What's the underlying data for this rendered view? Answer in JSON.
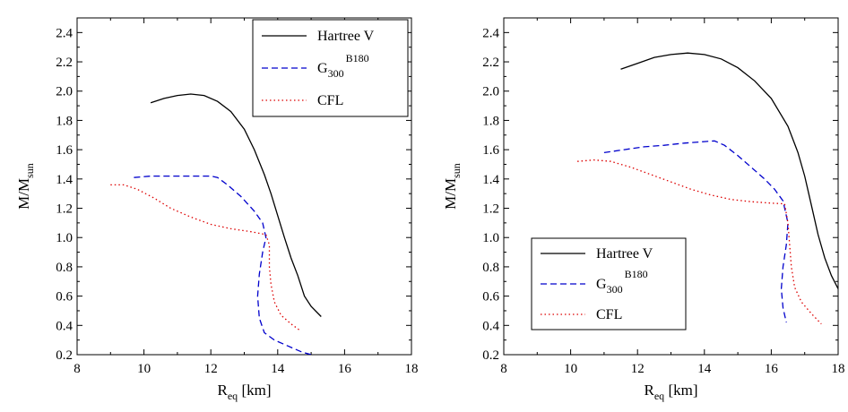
{
  "chart_data": [
    {
      "type": "line",
      "xlabel": "R_eq [km]",
      "ylabel": "M/M_sun",
      "xlim": [
        8,
        18
      ],
      "ylim": [
        0.2,
        2.5
      ],
      "xticks": [
        8,
        10,
        12,
        14,
        16,
        18
      ],
      "yticks": [
        0.2,
        0.4,
        0.6,
        0.8,
        1.0,
        1.2,
        1.4,
        1.6,
        1.8,
        2.0,
        2.2,
        2.4
      ],
      "grid": false,
      "legend_position": "top-right",
      "series": [
        {
          "name": "Hartree V",
          "color": "#000000",
          "dash": "solid",
          "x": [
            10.2,
            10.6,
            11.0,
            11.4,
            11.8,
            12.2,
            12.6,
            13.0,
            13.3,
            13.6,
            13.8,
            14.0,
            14.2,
            14.4,
            14.6,
            14.8,
            15.0,
            15.3
          ],
          "y": [
            1.92,
            1.95,
            1.97,
            1.98,
            1.97,
            1.93,
            1.86,
            1.74,
            1.6,
            1.43,
            1.3,
            1.15,
            1.0,
            0.86,
            0.74,
            0.6,
            0.53,
            0.46
          ]
        },
        {
          "name": "G_300^B180",
          "color": "#0000cc",
          "dash": "dashed",
          "x": [
            9.7,
            10.2,
            10.8,
            11.4,
            12.0,
            12.2,
            12.5,
            12.9,
            13.3,
            13.55,
            13.65,
            13.55,
            13.45,
            13.4,
            13.45,
            13.6,
            13.9,
            14.3,
            14.7,
            15.0
          ],
          "y": [
            1.41,
            1.42,
            1.42,
            1.42,
            1.42,
            1.41,
            1.36,
            1.28,
            1.18,
            1.1,
            1.0,
            0.9,
            0.75,
            0.6,
            0.45,
            0.35,
            0.3,
            0.26,
            0.22,
            0.2
          ]
        },
        {
          "name": "CFL",
          "color": "#dd0000",
          "dash": "dotted",
          "x": [
            9.0,
            9.4,
            9.8,
            10.3,
            10.8,
            11.4,
            12.0,
            12.6,
            13.2,
            13.65,
            13.75,
            13.75,
            13.8,
            13.9,
            14.1,
            14.4,
            14.7
          ],
          "y": [
            1.36,
            1.36,
            1.33,
            1.27,
            1.2,
            1.14,
            1.09,
            1.06,
            1.04,
            1.02,
            0.95,
            0.8,
            0.68,
            0.56,
            0.47,
            0.41,
            0.36
          ]
        }
      ]
    },
    {
      "type": "line",
      "xlabel": "R_eq [km]",
      "ylabel": "M/M_sun",
      "xlim": [
        8,
        18
      ],
      "ylim": [
        0.2,
        2.5
      ],
      "xticks": [
        8,
        10,
        12,
        14,
        16,
        18
      ],
      "yticks": [
        0.2,
        0.4,
        0.6,
        0.8,
        1.0,
        1.2,
        1.4,
        1.6,
        1.8,
        2.0,
        2.2,
        2.4
      ],
      "grid": false,
      "legend_position": "bottom-left",
      "series": [
        {
          "name": "Hartree V",
          "color": "#000000",
          "dash": "solid",
          "x": [
            11.5,
            12.0,
            12.5,
            13.0,
            13.5,
            14.0,
            14.5,
            15.0,
            15.5,
            16.0,
            16.5,
            16.8,
            17.0,
            17.2,
            17.4,
            17.6,
            17.8,
            18.0
          ],
          "y": [
            2.15,
            2.19,
            2.23,
            2.25,
            2.26,
            2.25,
            2.22,
            2.16,
            2.07,
            1.95,
            1.76,
            1.58,
            1.42,
            1.22,
            1.02,
            0.86,
            0.74,
            0.65
          ]
        },
        {
          "name": "G_300^B180",
          "color": "#0000cc",
          "dash": "dashed",
          "x": [
            11.0,
            11.6,
            12.2,
            12.8,
            13.4,
            14.0,
            14.3,
            14.6,
            15.0,
            15.4,
            15.8,
            16.1,
            16.35,
            16.5,
            16.45,
            16.35,
            16.3,
            16.35,
            16.45
          ],
          "y": [
            1.58,
            1.6,
            1.62,
            1.63,
            1.645,
            1.655,
            1.66,
            1.63,
            1.56,
            1.48,
            1.4,
            1.33,
            1.25,
            1.1,
            0.95,
            0.8,
            0.65,
            0.52,
            0.42
          ]
        },
        {
          "name": "CFL",
          "color": "#dd0000",
          "dash": "dotted",
          "x": [
            10.2,
            10.7,
            11.2,
            11.8,
            12.4,
            13.0,
            13.6,
            14.2,
            14.8,
            15.4,
            16.0,
            16.4,
            16.5,
            16.55,
            16.6,
            16.7,
            16.9,
            17.2,
            17.5
          ],
          "y": [
            1.52,
            1.53,
            1.52,
            1.48,
            1.43,
            1.38,
            1.33,
            1.29,
            1.26,
            1.245,
            1.235,
            1.23,
            1.1,
            0.95,
            0.8,
            0.66,
            0.56,
            0.48,
            0.41
          ]
        }
      ]
    }
  ]
}
